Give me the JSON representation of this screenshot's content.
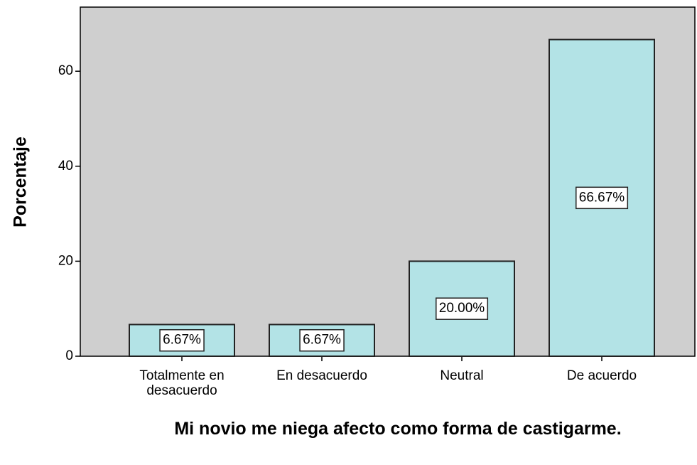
{
  "chart_data": {
    "type": "bar",
    "title": "Mi novio me niega afecto como forma de castigarme.",
    "y_label": "Porcentaje",
    "categories": [
      "Totalmente en desacuerdo",
      "En desacuerdo",
      "Neutral",
      "De acuerdo"
    ],
    "values": [
      6.67,
      6.67,
      20.0,
      66.67
    ],
    "value_labels": [
      "6.67%",
      "6.67%",
      "20.00%",
      "66.67%"
    ],
    "color": "#b3e3e6",
    "ylim": [
      0,
      73.5
    ],
    "yticks": [
      0,
      20,
      40,
      60
    ],
    "grid": false
  }
}
